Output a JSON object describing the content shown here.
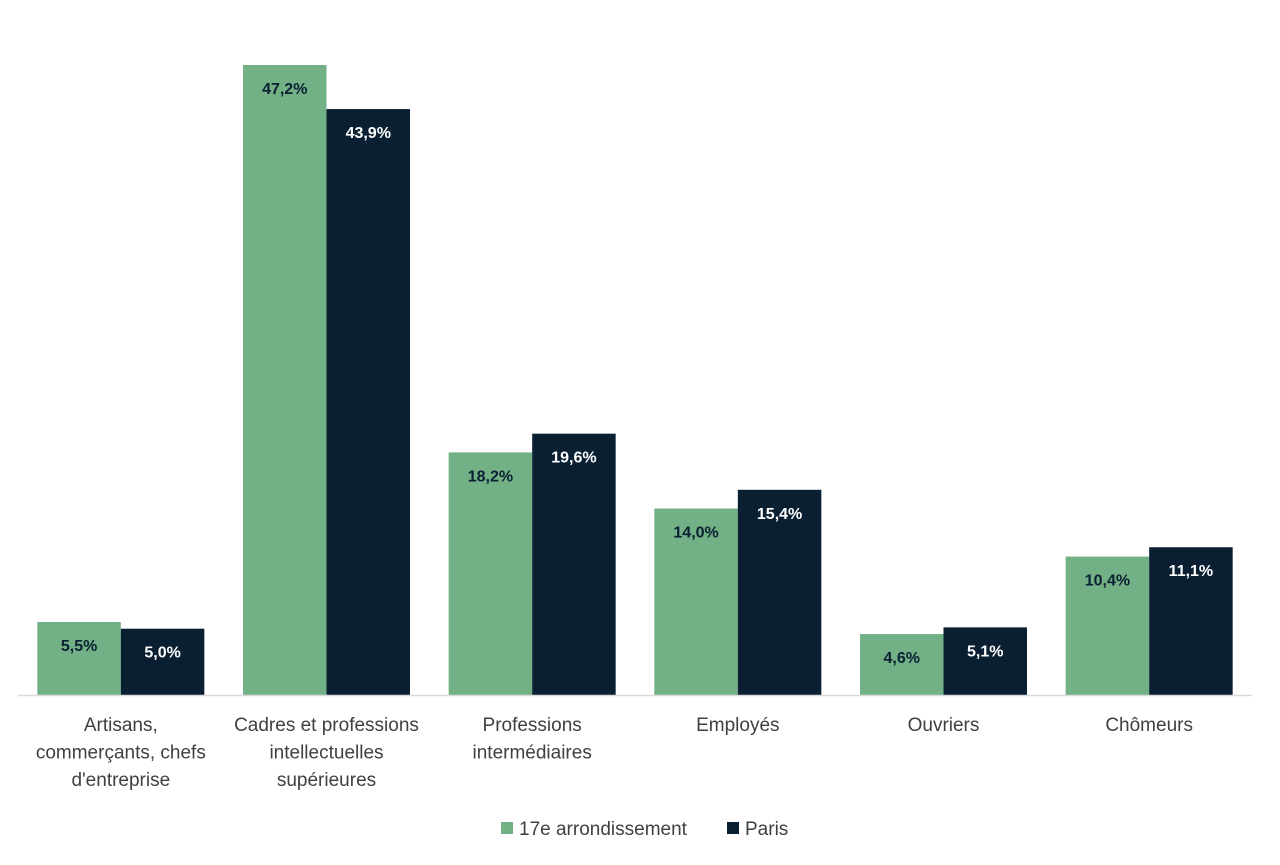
{
  "chart_data": {
    "type": "bar",
    "title": "",
    "xlabel": "",
    "ylabel": "",
    "ylim": [
      0,
      50
    ],
    "grid": false,
    "legend_position": "bottom",
    "categories": [
      [
        "Artisans,",
        "commerçants, chefs",
        "d'entreprise"
      ],
      [
        "Cadres et professions",
        "intellectuelles",
        "supérieures"
      ],
      [
        "Professions",
        "intermédiaires"
      ],
      [
        "Employés"
      ],
      [
        "Ouvriers"
      ],
      [
        "Chômeurs"
      ]
    ],
    "series": [
      {
        "name": "17e arrondissement",
        "color": "#72b085",
        "label_color": "#0b1f33",
        "values": [
          5.5,
          47.2,
          18.2,
          14.0,
          4.6,
          10.4
        ],
        "labels": [
          "5,5%",
          "47,2%",
          "18,2%",
          "14,0%",
          "4,6%",
          "10,4%"
        ]
      },
      {
        "name": "Paris",
        "color": "#0b1f33",
        "label_color": "#ffffff",
        "values": [
          5.0,
          43.9,
          19.6,
          15.4,
          5.1,
          11.1
        ],
        "labels": [
          "5,0%",
          "43,9%",
          "19,6%",
          "15,4%",
          "5,1%",
          "11,1%"
        ]
      }
    ]
  }
}
